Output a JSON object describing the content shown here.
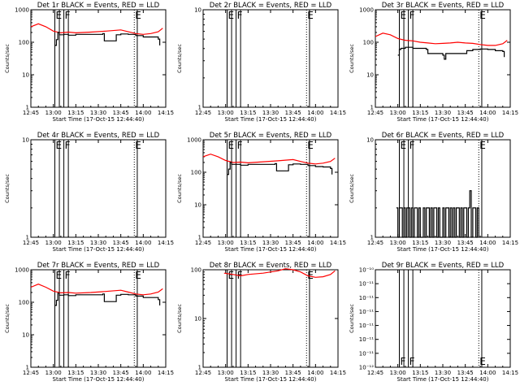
{
  "x_tick_labels": [
    "12:45",
    "13:00",
    "13:15",
    "13:30",
    "13:45",
    "14:00",
    "14:15"
  ],
  "xlabel": "Start Time (17-Oct-15 12:44:40)",
  "ylabel": "Counts/sec",
  "series_colors": {
    "events": "#000000",
    "lld": "#ff0000"
  },
  "chart_data": [
    {
      "type": "line",
      "title": "Det 1r BLACK = Events, RED = LLD",
      "ylabel": "Counts/sec",
      "xlabel": "Start Time (17-Oct-15 12:44:40)",
      "x_range_min": [
        0,
        90
      ],
      "y_scale": "log",
      "ylim": [
        1,
        1000
      ],
      "y_tick_labels": [
        "1",
        "10",
        "100",
        "1000"
      ],
      "vlines": [
        {
          "x": 16,
          "style": "solid",
          "marker": "E"
        },
        {
          "x": 19,
          "style": "solid",
          "marker": ""
        },
        {
          "x": 22,
          "style": "solid",
          "marker": "F"
        },
        {
          "x": 25,
          "style": "solid",
          "marker": ""
        },
        {
          "x": 69,
          "style": "dotted",
          "marker": "E"
        },
        {
          "x": 71,
          "style": "solid",
          "marker": ""
        }
      ],
      "lld": {
        "x": [
          0,
          5,
          10,
          15,
          20,
          25,
          30,
          40,
          50,
          60,
          65,
          70,
          75,
          80,
          85,
          88
        ],
        "y": [
          300,
          370,
          300,
          220,
          195,
          205,
          195,
          205,
          220,
          240,
          210,
          185,
          175,
          185,
          210,
          270
        ]
      },
      "events": {
        "x": [
          16,
          17,
          18,
          19,
          22,
          25,
          30,
          40,
          48,
          49,
          56,
          57,
          60,
          65,
          70,
          75,
          80,
          85,
          86
        ],
        "y": [
          80,
          120,
          200,
          170,
          175,
          165,
          175,
          175,
          185,
          110,
          110,
          170,
          180,
          175,
          160,
          145,
          145,
          125,
          80
        ]
      }
    },
    {
      "type": "line",
      "title": "Det 2r BLACK = Events, RED = LLD",
      "ylabel": "Counts/sec",
      "xlabel": "Start Time (17-Oct-15 12:44:40)",
      "x_range_min": [
        0,
        90
      ],
      "y_scale": "log",
      "ylim": [
        1,
        10
      ],
      "y_tick_labels": [
        "1",
        "10"
      ],
      "vlines": [
        {
          "x": 16,
          "style": "solid",
          "marker": "E"
        },
        {
          "x": 19,
          "style": "solid",
          "marker": ""
        },
        {
          "x": 22,
          "style": "solid",
          "marker": "F"
        },
        {
          "x": 25,
          "style": "solid",
          "marker": ""
        },
        {
          "x": 69,
          "style": "dotted",
          "marker": "E"
        },
        {
          "x": 71,
          "style": "solid",
          "marker": ""
        }
      ],
      "lld": null,
      "events": null
    },
    {
      "type": "line",
      "title": "Det 3r BLACK = Events, RED = LLD",
      "ylabel": "Counts/sec",
      "xlabel": "Start Time (17-Oct-15 12:44:40)",
      "x_range_min": [
        0,
        90
      ],
      "y_scale": "log",
      "ylim": [
        1,
        1000
      ],
      "y_tick_labels": [
        "1",
        "10",
        "100",
        "1000"
      ],
      "vlines": [
        {
          "x": 16,
          "style": "solid",
          "marker": "E"
        },
        {
          "x": 19,
          "style": "solid",
          "marker": ""
        },
        {
          "x": 22,
          "style": "solid",
          "marker": "F"
        },
        {
          "x": 25,
          "style": "solid",
          "marker": ""
        },
        {
          "x": 69,
          "style": "dotted",
          "marker": "E"
        },
        {
          "x": 71,
          "style": "solid",
          "marker": ""
        }
      ],
      "lld": {
        "x": [
          0,
          5,
          10,
          15,
          20,
          25,
          30,
          35,
          40,
          45,
          50,
          55,
          60,
          65,
          70,
          75,
          80,
          85,
          88
        ],
        "y": [
          150,
          190,
          170,
          130,
          115,
          110,
          100,
          95,
          90,
          92,
          95,
          100,
          95,
          92,
          85,
          80,
          80,
          90,
          115
        ]
      },
      "events": {
        "x": [
          15,
          16,
          17,
          20,
          25,
          30,
          34,
          35,
          40,
          45,
          46,
          47,
          55,
          60,
          61,
          65,
          70,
          75,
          80,
          85,
          86
        ],
        "y": [
          40,
          60,
          65,
          70,
          65,
          65,
          60,
          45,
          45,
          40,
          30,
          45,
          45,
          45,
          55,
          60,
          62,
          60,
          55,
          52,
          35
        ]
      }
    },
    {
      "type": "line",
      "title": "Det 4r BLACK = Events, RED = LLD",
      "ylabel": "Counts/sec",
      "xlabel": "Start Time (17-Oct-15 12:44:40)",
      "x_range_min": [
        0,
        90
      ],
      "y_scale": "log",
      "ylim": [
        1,
        10
      ],
      "y_tick_labels": [
        "1",
        "10"
      ],
      "vlines": [
        {
          "x": 16,
          "style": "solid",
          "marker": "E"
        },
        {
          "x": 19,
          "style": "solid",
          "marker": ""
        },
        {
          "x": 22,
          "style": "solid",
          "marker": "F"
        },
        {
          "x": 25,
          "style": "solid",
          "marker": ""
        },
        {
          "x": 69,
          "style": "dotted",
          "marker": "E"
        },
        {
          "x": 71,
          "style": "solid",
          "marker": ""
        }
      ],
      "lld": null,
      "events": null
    },
    {
      "type": "line",
      "title": "Det 5r BLACK = Events, RED = LLD",
      "ylabel": "Counts/sec",
      "xlabel": "Start Time (17-Oct-15 12:44:40)",
      "x_range_min": [
        0,
        90
      ],
      "y_scale": "log",
      "ylim": [
        1,
        1000
      ],
      "y_tick_labels": [
        "1",
        "10",
        "100",
        "1000"
      ],
      "vlines": [
        {
          "x": 16,
          "style": "solid",
          "marker": "E"
        },
        {
          "x": 19,
          "style": "solid",
          "marker": ""
        },
        {
          "x": 22,
          "style": "solid",
          "marker": "F"
        },
        {
          "x": 25,
          "style": "solid",
          "marker": ""
        },
        {
          "x": 69,
          "style": "dotted",
          "marker": "E"
        },
        {
          "x": 71,
          "style": "solid",
          "marker": ""
        }
      ],
      "lld": {
        "x": [
          0,
          5,
          10,
          15,
          20,
          25,
          30,
          40,
          50,
          60,
          65,
          70,
          75,
          80,
          85,
          88
        ],
        "y": [
          300,
          360,
          300,
          230,
          200,
          205,
          195,
          210,
          225,
          245,
          215,
          190,
          180,
          190,
          215,
          270
        ]
      },
      "events": {
        "x": [
          16,
          17,
          18,
          19,
          22,
          25,
          30,
          40,
          48,
          49,
          56,
          57,
          60,
          65,
          70,
          75,
          80,
          85,
          86
        ],
        "y": [
          85,
          125,
          200,
          175,
          175,
          165,
          175,
          175,
          185,
          110,
          110,
          170,
          180,
          175,
          160,
          150,
          145,
          130,
          85
        ]
      }
    },
    {
      "type": "line",
      "title": "Det 6r BLACK = Events, RED = LLD",
      "ylabel": "Counts/sec",
      "xlabel": "Start Time (17-Oct-15 12:44:40)",
      "x_range_min": [
        0,
        90
      ],
      "y_scale": "log",
      "ylim": [
        1,
        10
      ],
      "y_tick_labels": [
        "1",
        "10"
      ],
      "vlines": [
        {
          "x": 16,
          "style": "solid",
          "marker": "E"
        },
        {
          "x": 19,
          "style": "solid",
          "marker": ""
        },
        {
          "x": 22,
          "style": "solid",
          "marker": "F"
        },
        {
          "x": 25,
          "style": "solid",
          "marker": ""
        },
        {
          "x": 69,
          "style": "dotted",
          "marker": "E"
        },
        {
          "x": 71,
          "style": "solid",
          "marker": ""
        }
      ],
      "lld": null,
      "events": {
        "x": [
          14,
          15,
          16,
          17,
          18,
          19,
          20,
          21,
          22,
          23,
          24,
          25,
          26,
          27,
          28,
          29,
          30,
          31,
          32,
          33,
          34,
          35,
          36,
          37,
          38,
          39,
          40,
          41,
          42,
          43,
          44,
          45,
          46,
          47,
          48,
          49,
          50,
          51,
          52,
          53,
          54,
          55,
          56,
          57,
          58,
          59,
          60,
          61,
          62,
          63,
          64,
          65,
          66,
          67,
          68,
          69
        ],
        "y": [
          2,
          1,
          2,
          2,
          1,
          2,
          1,
          2,
          2,
          1,
          2,
          1,
          2,
          2,
          1,
          2,
          1,
          1,
          2,
          1,
          2,
          2,
          1,
          2,
          1,
          2,
          2,
          1,
          2,
          1,
          1,
          2,
          1,
          2,
          2,
          1,
          2,
          1,
          2,
          1,
          2,
          2,
          1,
          2,
          1,
          2,
          2,
          1,
          2,
          3,
          1,
          2,
          2,
          1,
          2,
          1
        ]
      }
    },
    {
      "type": "line",
      "title": "Det 7r BLACK = Events, RED = LLD",
      "ylabel": "Counts/sec",
      "xlabel": "Start Time (17-Oct-15 12:44:40)",
      "x_range_min": [
        0,
        90
      ],
      "y_scale": "log",
      "ylim": [
        1,
        1000
      ],
      "y_tick_labels": [
        "1",
        "10",
        "100",
        "1000"
      ],
      "vlines": [
        {
          "x": 16,
          "style": "solid",
          "marker": "E"
        },
        {
          "x": 19,
          "style": "solid",
          "marker": ""
        },
        {
          "x": 22,
          "style": "solid",
          "marker": "F"
        },
        {
          "x": 25,
          "style": "solid",
          "marker": ""
        },
        {
          "x": 69,
          "style": "dotted",
          "marker": "E"
        },
        {
          "x": 71,
          "style": "solid",
          "marker": ""
        }
      ],
      "lld": {
        "x": [
          0,
          5,
          10,
          15,
          20,
          25,
          30,
          40,
          50,
          60,
          65,
          70,
          75,
          80,
          85,
          88
        ],
        "y": [
          290,
          360,
          290,
          220,
          195,
          200,
          190,
          200,
          215,
          235,
          205,
          180,
          170,
          180,
          205,
          260
        ]
      },
      "events": {
        "x": [
          16,
          17,
          18,
          19,
          22,
          25,
          30,
          40,
          48,
          49,
          56,
          57,
          60,
          65,
          70,
          75,
          80,
          85,
          86
        ],
        "y": [
          80,
          115,
          190,
          165,
          170,
          160,
          170,
          170,
          180,
          105,
          105,
          165,
          175,
          170,
          155,
          140,
          140,
          120,
          80
        ]
      }
    },
    {
      "type": "line",
      "title": "Det 8r BLACK = Events, RED = LLD",
      "ylabel": "Counts/sec",
      "xlabel": "Start Time (17-Oct-15 12:44:40)",
      "x_range_min": [
        0,
        90
      ],
      "y_scale": "log",
      "ylim": [
        1,
        100
      ],
      "y_tick_labels": [
        "1",
        "10",
        "100"
      ],
      "vlines": [
        {
          "x": 16,
          "style": "solid",
          "marker": "E"
        },
        {
          "x": 19,
          "style": "solid",
          "marker": ""
        },
        {
          "x": 22,
          "style": "solid",
          "marker": "F"
        },
        {
          "x": 25,
          "style": "solid",
          "marker": ""
        },
        {
          "x": 69,
          "style": "dotted",
          "marker": "E"
        },
        {
          "x": 71,
          "style": "solid",
          "marker": ""
        }
      ],
      "lld": {
        "x": [
          14,
          20,
          25,
          30,
          40,
          50,
          55,
          60,
          65,
          70,
          75,
          80,
          85,
          88
        ],
        "y": [
          85,
          80,
          75,
          80,
          85,
          95,
          105,
          100,
          90,
          75,
          70,
          72,
          80,
          95
        ]
      },
      "events": null
    },
    {
      "type": "line",
      "title": "Det 9r BLACK = Events, RED = LLD",
      "ylabel": "Counts/sec",
      "xlabel": "Start Time (17-Oct-15 12:44:40)",
      "x_range_min": [
        0,
        90
      ],
      "y_scale": "log",
      "ylim": [
        1e-12,
        1e-10
      ],
      "y_tick_labels": [
        "10⁻¹²",
        "10⁻¹¹",
        "10⁻¹¹",
        "10⁻¹¹",
        "10⁻¹¹",
        "10⁻¹¹",
        "10⁻¹¹",
        "10⁻¹⁰"
      ],
      "vlines": [
        {
          "x": 16,
          "style": "solid",
          "marker": "F"
        },
        {
          "x": 19,
          "style": "solid",
          "marker": ""
        },
        {
          "x": 22,
          "style": "solid",
          "marker": "F"
        },
        {
          "x": 25,
          "style": "solid",
          "marker": ""
        },
        {
          "x": 69,
          "style": "dotted",
          "marker": "E"
        },
        {
          "x": 71,
          "style": "solid",
          "marker": ""
        }
      ],
      "lld": null,
      "events": null
    }
  ]
}
